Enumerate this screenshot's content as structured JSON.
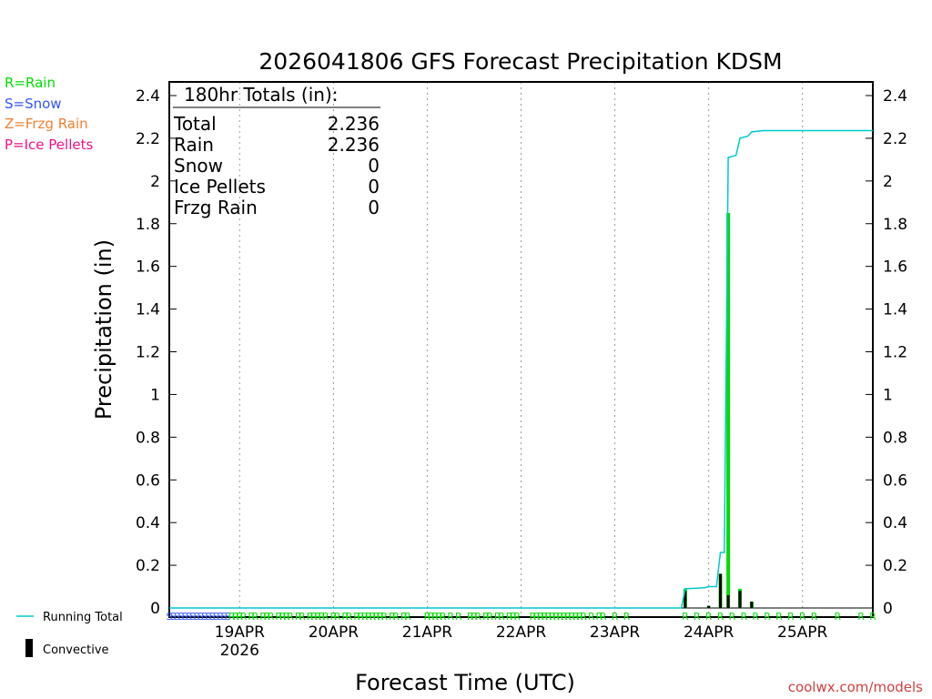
{
  "chart_data": {
    "type": "bar",
    "title": "2026041806 GFS Forecast Precipitation KDSM",
    "xlabel": "Forecast Time (UTC)",
    "ylabel": "Precipitation (in)",
    "ylim": [
      0,
      2.45
    ],
    "yticks": [
      "0",
      "0.2",
      "0.4",
      "0.6",
      "0.8",
      "1",
      "1.2",
      "1.4",
      "1.6",
      "1.8",
      "2",
      "2.2",
      "2.4"
    ],
    "x_range_hours": [
      0,
      180
    ],
    "x_ticks": [
      {
        "label": "19APR",
        "sublabel": "2026",
        "hour": 18
      },
      {
        "label": "20APR",
        "sublabel": "",
        "hour": 42
      },
      {
        "label": "21APR",
        "sublabel": "",
        "hour": 66
      },
      {
        "label": "22APR",
        "sublabel": "",
        "hour": 90
      },
      {
        "label": "23APR",
        "sublabel": "",
        "hour": 114
      },
      {
        "label": "24APR",
        "sublabel": "",
        "hour": 138
      },
      {
        "label": "25APR",
        "sublabel": "",
        "hour": 162
      }
    ],
    "precip_type_legend": [
      {
        "label": "R=Rain",
        "color": "#00dd00"
      },
      {
        "label": "S=Snow",
        "color": "#3355ff"
      },
      {
        "label": "Z=Frzg Rain",
        "color": "#f08030"
      },
      {
        "label": "P=Ice Pellets",
        "color": "#ee1188"
      }
    ],
    "series_legend": [
      {
        "label": "Running Total",
        "color": "#00c8d0"
      },
      {
        "label": "Convective",
        "color": "#000000"
      }
    ],
    "totals_box": {
      "heading": "180hr Totals (in):",
      "rows": [
        {
          "label": "Total",
          "value": "2.236"
        },
        {
          "label": "Rain",
          "value": "2.236"
        },
        {
          "label": "Snow",
          "value": "0"
        },
        {
          "label": "Ice Pellets",
          "value": "0"
        },
        {
          "label": "Frzg Rain",
          "value": "0"
        }
      ]
    },
    "series": [
      {
        "name": "Running Total",
        "color": "#00c8d0",
        "points": [
          [
            0,
            0
          ],
          [
            131,
            0
          ],
          [
            132,
            0.09
          ],
          [
            137,
            0.095
          ],
          [
            138,
            0.1
          ],
          [
            140,
            0.1
          ],
          [
            141,
            0.26
          ],
          [
            142,
            0.26
          ],
          [
            143,
            2.11
          ],
          [
            145,
            2.12
          ],
          [
            146,
            2.2
          ],
          [
            148,
            2.21
          ],
          [
            149,
            2.23
          ],
          [
            152,
            2.236
          ],
          [
            180,
            2.236
          ]
        ]
      },
      {
        "name": "Precipitation",
        "color": "#00dd00",
        "bars": [
          [
            132,
            0.09
          ],
          [
            138,
            0.01
          ],
          [
            141,
            0.16
          ],
          [
            143,
            1.85
          ],
          [
            146,
            0.09
          ],
          [
            149,
            0.03
          ]
        ]
      },
      {
        "name": "Convective",
        "color": "#000000",
        "bars": [
          [
            132,
            0.08
          ],
          [
            138,
            0.01
          ],
          [
            141,
            0.16
          ],
          [
            143,
            0.06
          ],
          [
            146,
            0.08
          ],
          [
            149,
            0.03
          ]
        ]
      }
    ],
    "ptype_marks": [
      {
        "type": "S",
        "hours": [
          0,
          1,
          2,
          3,
          4,
          5,
          6,
          7,
          8,
          9,
          10,
          11,
          12,
          13,
          14,
          15
        ]
      },
      {
        "type": "R",
        "hours": [
          16,
          17,
          18,
          19,
          21,
          22,
          24,
          25,
          26,
          28,
          29,
          30,
          31,
          33,
          34,
          36,
          37,
          38,
          39,
          40,
          42,
          43,
          45,
          46,
          48,
          49,
          50,
          51,
          52,
          53,
          54,
          55,
          57,
          58,
          60,
          61,
          66,
          67,
          68,
          69,
          70,
          72,
          74,
          77,
          78,
          79,
          81,
          82,
          84,
          85,
          87,
          88,
          89,
          93,
          94,
          95,
          96,
          97,
          98,
          99,
          100,
          101,
          102,
          103,
          104,
          105,
          106,
          108,
          110,
          111,
          114,
          117,
          132,
          135,
          138,
          141,
          144,
          147,
          150,
          153,
          156,
          159,
          162,
          165,
          171,
          177,
          180
        ]
      }
    ]
  },
  "credit": "coolwx.com/models"
}
